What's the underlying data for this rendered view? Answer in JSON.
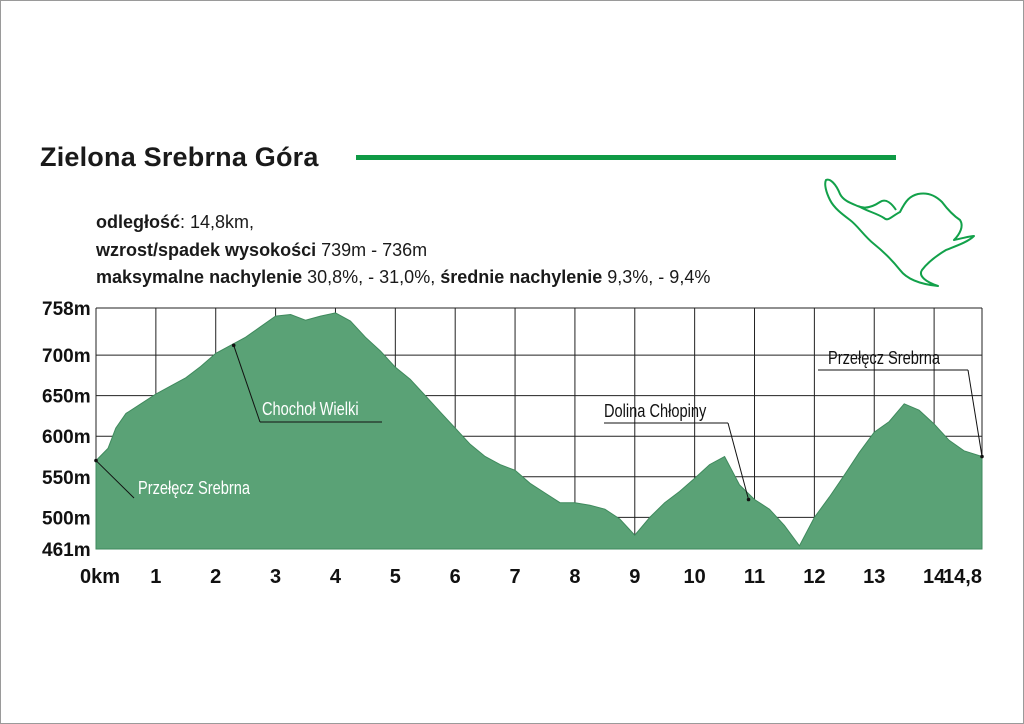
{
  "title": "Zielona Srebrna Góra",
  "colors": {
    "accent": "#0f9a45",
    "area": "#5aa276",
    "area_stroke": "#3f8a5d",
    "map_line": "#12a14a"
  },
  "stats": {
    "distance_label": "odległość",
    "distance_value": ": 14,8km,",
    "elevation_label": "wzrost/spadek wysokości",
    "elevation_value": " 739m - 736m",
    "max_slope_label": "maksymalne nachylenie",
    "max_slope_value": " 30,8%, - 31,0%, ",
    "avg_slope_label": "średnie nachylenie",
    "avg_slope_value": " 9,3%, - 9,4%"
  },
  "chart_data": {
    "type": "area",
    "xlabel": "",
    "ylabel": "",
    "xlim": [
      0,
      14.8
    ],
    "ylim": [
      461,
      758
    ],
    "y_ticks": [
      {
        "value": 758,
        "label": "758m"
      },
      {
        "value": 700,
        "label": "700m"
      },
      {
        "value": 650,
        "label": "650m"
      },
      {
        "value": 600,
        "label": "600m"
      },
      {
        "value": 550,
        "label": "550m"
      },
      {
        "value": 500,
        "label": "500m"
      },
      {
        "value": 461,
        "label": "461m"
      }
    ],
    "x_ticks": [
      {
        "value": 0,
        "label": "0km"
      },
      {
        "value": 1,
        "label": "1"
      },
      {
        "value": 2,
        "label": "2"
      },
      {
        "value": 3,
        "label": "3"
      },
      {
        "value": 4,
        "label": "4"
      },
      {
        "value": 5,
        "label": "5"
      },
      {
        "value": 6,
        "label": "6"
      },
      {
        "value": 7,
        "label": "7"
      },
      {
        "value": 8,
        "label": "8"
      },
      {
        "value": 9,
        "label": "9"
      },
      {
        "value": 10,
        "label": "10"
      },
      {
        "value": 11,
        "label": "11"
      },
      {
        "value": 12,
        "label": "12"
      },
      {
        "value": 13,
        "label": "13"
      },
      {
        "value": 14,
        "label": "14"
      },
      {
        "value": 14.8,
        "label": "14,8"
      }
    ],
    "grid": true,
    "x": [
      0,
      0.2,
      0.33,
      0.5,
      0.75,
      1.0,
      1.25,
      1.5,
      1.75,
      2.0,
      2.25,
      2.5,
      2.75,
      3.0,
      3.25,
      3.5,
      3.75,
      4.0,
      4.25,
      4.5,
      4.75,
      5.0,
      5.25,
      5.5,
      5.75,
      6.0,
      6.25,
      6.5,
      6.75,
      7.0,
      7.25,
      7.5,
      7.75,
      8.0,
      8.25,
      8.5,
      8.75,
      9.0,
      9.25,
      9.5,
      9.75,
      10.0,
      10.25,
      10.5,
      10.75,
      11.0,
      11.25,
      11.5,
      11.75,
      12.0,
      12.25,
      12.5,
      12.75,
      13.0,
      13.25,
      13.5,
      13.75,
      14.0,
      14.25,
      14.5,
      14.8
    ],
    "elevation": [
      570,
      585,
      610,
      628,
      640,
      652,
      662,
      672,
      686,
      702,
      712,
      722,
      735,
      748,
      750,
      743,
      748,
      752,
      742,
      722,
      705,
      685,
      670,
      650,
      630,
      610,
      590,
      575,
      565,
      558,
      542,
      530,
      518,
      518,
      515,
      510,
      498,
      478,
      500,
      518,
      532,
      548,
      565,
      575,
      540,
      522,
      510,
      490,
      465,
      500,
      525,
      552,
      580,
      605,
      618,
      640,
      632,
      615,
      595,
      582,
      575
    ],
    "annotations": [
      {
        "text": "Przełęcz Srebrna",
        "x": 0,
        "elevation": 570
      },
      {
        "text": "Chochoł Wielki",
        "x": 2.3,
        "elevation": 712
      },
      {
        "text": "Dolina Chłopiny",
        "x": 10.9,
        "elevation": 522
      },
      {
        "text": "Przełęcz Srebrna",
        "x": 14.8,
        "elevation": 575
      }
    ]
  }
}
